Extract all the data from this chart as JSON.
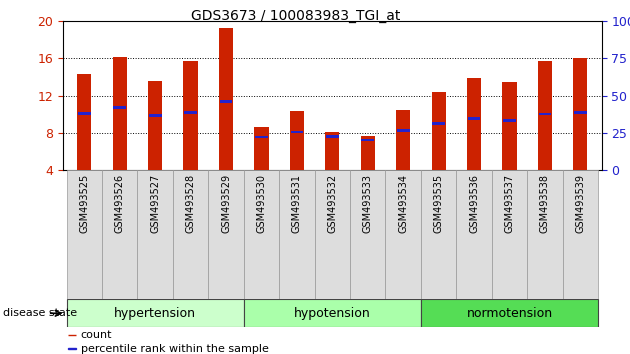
{
  "title": "GDS3673 / 100083983_TGI_at",
  "samples": [
    "GSM493525",
    "GSM493526",
    "GSM493527",
    "GSM493528",
    "GSM493529",
    "GSM493530",
    "GSM493531",
    "GSM493532",
    "GSM493533",
    "GSM493534",
    "GSM493535",
    "GSM493536",
    "GSM493537",
    "GSM493538",
    "GSM493539"
  ],
  "counts": [
    14.3,
    16.2,
    13.6,
    15.7,
    19.3,
    8.65,
    10.3,
    8.1,
    7.6,
    10.5,
    12.4,
    13.9,
    13.5,
    15.7,
    16.0
  ],
  "percentile_ranks_y": [
    10.1,
    10.7,
    9.85,
    10.2,
    11.35,
    7.55,
    8.1,
    7.58,
    7.22,
    8.22,
    8.98,
    9.52,
    9.3,
    10.0,
    10.2
  ],
  "bar_color": "#cc2200",
  "marker_color": "#2222cc",
  "ylim_left": [
    4,
    20
  ],
  "ylim_right": [
    0,
    100
  ],
  "yticks_left": [
    4,
    8,
    12,
    16,
    20
  ],
  "yticks_right": [
    0,
    25,
    50,
    75,
    100
  ],
  "bar_width": 0.4,
  "legend_items": [
    {
      "label": "count",
      "color": "#cc2200"
    },
    {
      "label": "percentile rank within the sample",
      "color": "#2222cc"
    }
  ],
  "disease_state_label": "disease state",
  "groups": [
    {
      "name": "hypertension",
      "start": 0,
      "end": 5,
      "color": "#ccffcc"
    },
    {
      "name": "hypotension",
      "start": 5,
      "end": 10,
      "color": "#aaffaa"
    },
    {
      "name": "normotension",
      "start": 10,
      "end": 15,
      "color": "#55dd55"
    }
  ]
}
